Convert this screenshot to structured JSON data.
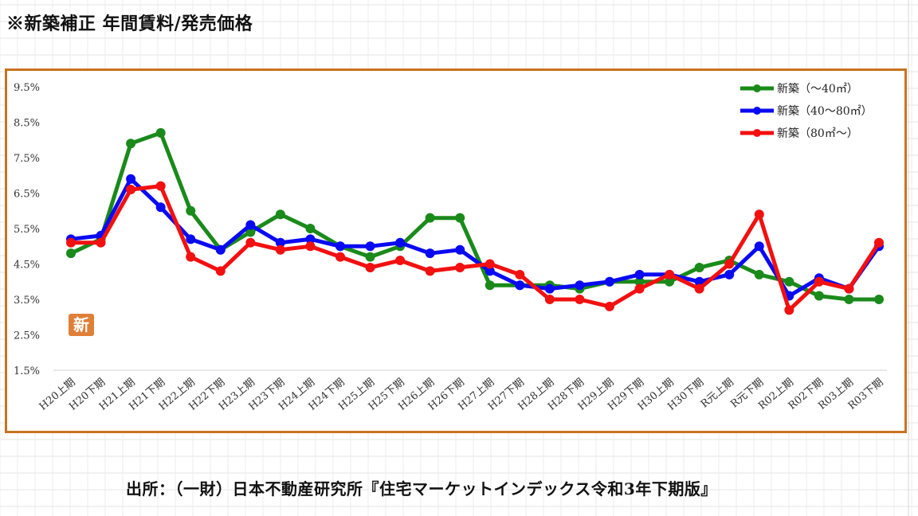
{
  "page_title": "※新築補正 年間賃料/発売価格",
  "source_note": "出所：（一財）日本不動産研究所『住宅マーケットインデックス令和3年下期版』",
  "badge_text": "新",
  "colors": {
    "frame": "#c8731f",
    "badge": "#e07f38",
    "grid": "#d4d4d4",
    "series": [
      "#1a8a1a",
      "#0a0af2",
      "#f21010"
    ]
  },
  "chart_data": {
    "type": "line",
    "title": "",
    "xlabel": "",
    "ylabel": "",
    "ylim": [
      1.5,
      9.5
    ],
    "yticks": [
      "1.5%",
      "2.5%",
      "3.5%",
      "4.5%",
      "5.5%",
      "6.5%",
      "7.5%",
      "8.5%",
      "9.5%"
    ],
    "legend_position": "top-right",
    "grid": "horizontal baseline only",
    "categories": [
      "H20上期",
      "H20下期",
      "H21上期",
      "H21下期",
      "H22上期",
      "H22下期",
      "H23上期",
      "H23下期",
      "H24上期",
      "H24下期",
      "H25上期",
      "H25下期",
      "H26上期",
      "H26下期",
      "H27上期",
      "H27下期",
      "H28上期",
      "H28下期",
      "H29上期",
      "H29下期",
      "H30上期",
      "H30下期",
      "R元上期",
      "R元下期",
      "R02上期",
      "R02下期",
      "R03上期",
      "R03下期"
    ],
    "series": [
      {
        "name": "新築（～40㎡）",
        "color": "#1a8a1a",
        "values": [
          4.8,
          5.2,
          7.9,
          8.2,
          6.0,
          4.9,
          5.4,
          5.9,
          5.5,
          5.0,
          4.7,
          5.0,
          5.8,
          5.8,
          3.9,
          3.9,
          3.9,
          3.8,
          4.0,
          4.0,
          4.0,
          4.4,
          4.6,
          4.2,
          4.0,
          3.6,
          3.5,
          3.5
        ]
      },
      {
        "name": "新築（40～80㎡）",
        "color": "#0a0af2",
        "values": [
          5.2,
          5.3,
          6.9,
          6.1,
          5.2,
          4.9,
          5.6,
          5.1,
          5.2,
          5.0,
          5.0,
          5.1,
          4.8,
          4.9,
          4.3,
          3.9,
          3.8,
          3.9,
          4.0,
          4.2,
          4.2,
          4.0,
          4.2,
          5.0,
          3.6,
          4.1,
          3.8,
          5.0
        ]
      },
      {
        "name": "新築（80㎡～）",
        "color": "#f21010",
        "values": [
          5.1,
          5.1,
          6.6,
          6.7,
          4.7,
          4.3,
          5.1,
          4.9,
          5.0,
          4.7,
          4.4,
          4.6,
          4.3,
          4.4,
          4.5,
          4.2,
          3.5,
          3.5,
          3.3,
          3.8,
          4.2,
          3.8,
          4.5,
          5.9,
          3.2,
          4.0,
          3.8,
          5.1
        ]
      }
    ]
  }
}
